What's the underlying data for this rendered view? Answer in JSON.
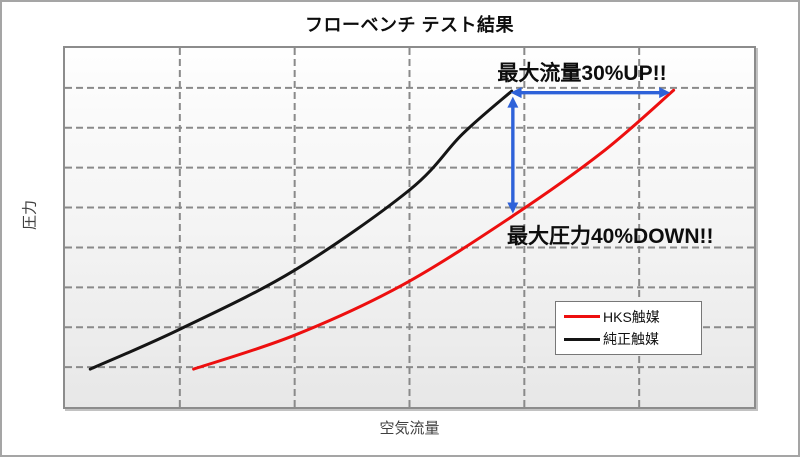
{
  "title": "フローベンチ テスト結果",
  "y_axis_label": "圧力",
  "x_axis_label": "空気流量",
  "annotations": {
    "flow_up_label": "最大流量30%UP!!",
    "pressure_down_label": "最大圧力40%DOWN!!",
    "arrow_color": "#2e62d9"
  },
  "legend": {
    "items": [
      {
        "label": "HKS触媒",
        "color": "#ed0f0f"
      },
      {
        "label": "純正触媒",
        "color": "#151515"
      }
    ]
  },
  "colors": {
    "grid": "#8a8a8a",
    "plot_border": "#8c8c8c",
    "outer_border": "#a5a5a5",
    "plot_bg_top": "#fefefe",
    "plot_bg_bottom": "#e7e7e7"
  },
  "chart_data": {
    "type": "line",
    "title": "フローベンチ テスト結果",
    "xlabel": "空気流量",
    "ylabel": "圧力",
    "x_tick_labels": [],
    "y_tick_labels": [],
    "grid": "dashed",
    "x_gridline_divisions": 6,
    "y_gridline_divisions": 9,
    "axis_units": "unlabeled grid units",
    "legend_position": "inside-lower-right",
    "series": [
      {
        "name": "純正触媒",
        "color": "#151515",
        "points_grid_units": [
          [
            0.22,
            0.95
          ],
          [
            1.0,
            1.95
          ],
          [
            2.0,
            3.43
          ],
          [
            3.0,
            5.44
          ],
          [
            3.46,
            6.84
          ],
          [
            3.89,
            7.92
          ]
        ]
      },
      {
        "name": "HKS触媒",
        "color": "#ed0f0f",
        "points_grid_units": [
          [
            1.12,
            0.95
          ],
          [
            2.0,
            1.8
          ],
          [
            2.94,
            3.06
          ],
          [
            3.9,
            4.79
          ],
          [
            4.68,
            6.39
          ],
          [
            5.3,
            7.94
          ]
        ]
      }
    ],
    "arrows": [
      {
        "kind": "double-headed-horizontal",
        "from": [
          3.88,
          7.88
        ],
        "to": [
          5.27,
          7.88
        ],
        "label": "最大流量30%UP!!"
      },
      {
        "kind": "double-headed-vertical",
        "from": [
          3.9,
          7.78
        ],
        "to": [
          3.9,
          4.85
        ],
        "label": "最大圧力40%DOWN!!"
      }
    ]
  }
}
